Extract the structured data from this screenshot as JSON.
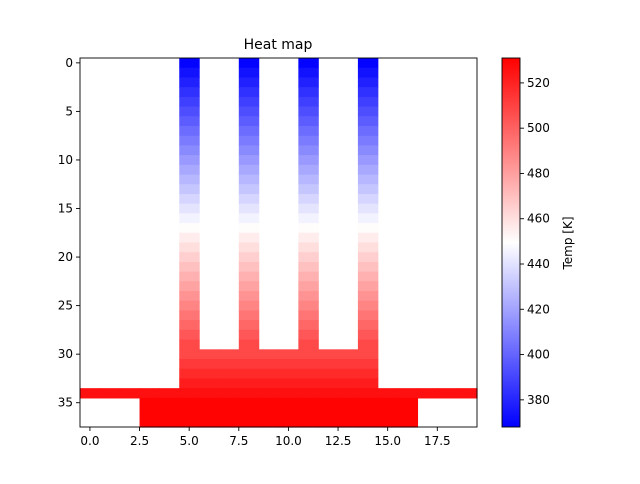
{
  "chart_data": {
    "type": "heatmap",
    "title": "Heat map",
    "colorbar_label": "Temp [K]",
    "colormap": "bwr",
    "colormap_colors": [
      "#0000ff",
      "#ffffff",
      "#ff0000"
    ],
    "vmin": 368,
    "vmax": 531,
    "grid": false,
    "n_cols": 20,
    "n_rows": 38,
    "x_ticks": [
      0,
      2.5,
      5,
      7.5,
      10,
      12.5,
      15,
      17.5
    ],
    "x_tick_labels": [
      "0.0",
      "2.5",
      "5.0",
      "7.5",
      "10.0",
      "12.5",
      "15.0",
      "17.5"
    ],
    "y_ticks": [
      0,
      5,
      10,
      15,
      20,
      25,
      30,
      35
    ],
    "y_tick_labels": [
      "0",
      "5",
      "10",
      "15",
      "20",
      "25",
      "30",
      "35"
    ],
    "colorbar_ticks": [
      380,
      400,
      420,
      440,
      460,
      480,
      500,
      520
    ],
    "colorbar_tick_labels": [
      "380",
      "400",
      "420",
      "440",
      "460",
      "480",
      "500",
      "520"
    ],
    "fins": {
      "columns": [
        5,
        8,
        11,
        14
      ],
      "row_range": [
        0,
        29
      ],
      "temp_top": 369,
      "temp_bottom": 508
    },
    "base": {
      "rows": [
        30,
        33
      ],
      "col_range": [
        5,
        14
      ],
      "temp_top": 508,
      "temp_bottom": 522
    },
    "wide_row": {
      "row": 34,
      "col_range": [
        0,
        19
      ],
      "temp": 526
    },
    "bottom_rows": {
      "rows": [
        35,
        37
      ],
      "col_range": [
        3,
        16
      ],
      "temp": 530
    }
  }
}
